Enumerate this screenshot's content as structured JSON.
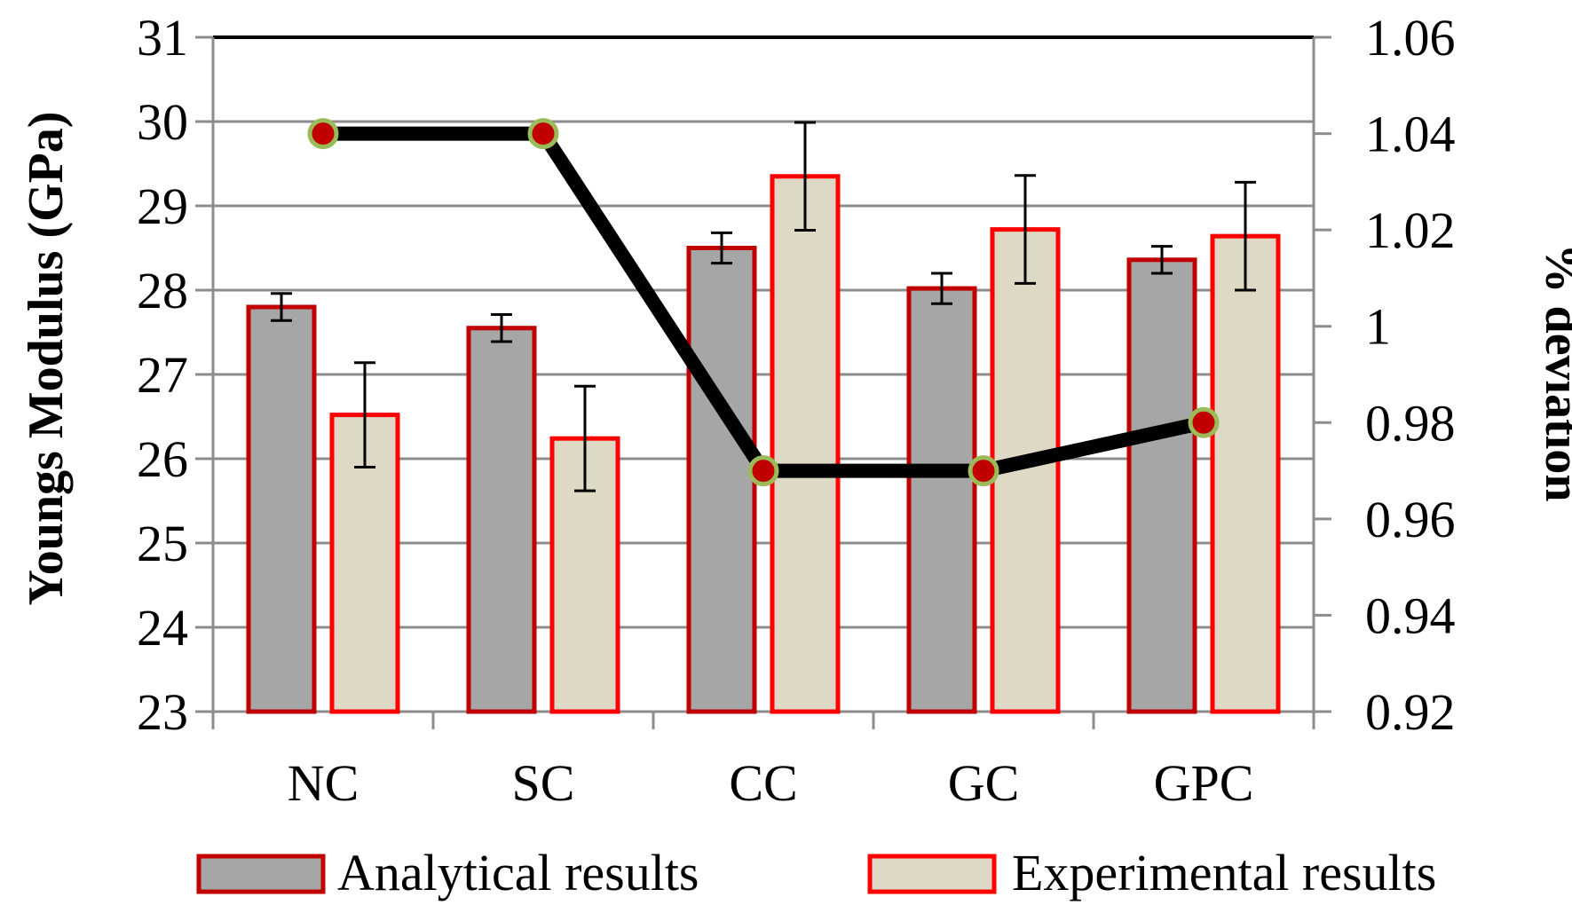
{
  "chart_data": {
    "type": "bar",
    "categories": [
      "NC",
      "SC",
      "CC",
      "GC",
      "GPC"
    ],
    "ylabel_left": "Youngs Modulus (GPa)",
    "ylabel_right": "% deviation",
    "ylim_left": [
      23,
      31
    ],
    "ylim_right": [
      0.92,
      1.06
    ],
    "yticks_left": [
      "23",
      "24",
      "25",
      "26",
      "27",
      "28",
      "29",
      "30",
      "31"
    ],
    "yticks_right": [
      "0.92",
      "0.94",
      "0.96",
      "0.98",
      "1",
      "1.02",
      "1.04",
      "1.06"
    ],
    "grid": true,
    "legend_position": "bottom",
    "series": [
      {
        "name": "Analytical results",
        "kind": "bar",
        "axis": "left",
        "values": [
          27.8,
          27.55,
          28.5,
          28.02,
          28.36
        ],
        "error": [
          0.16,
          0.16,
          0.18,
          0.18,
          0.16
        ],
        "fill": "#a6a6a6",
        "stroke": "#c00000"
      },
      {
        "name": "Experimental results",
        "kind": "bar",
        "axis": "left",
        "values": [
          26.52,
          26.24,
          29.35,
          28.72,
          28.64
        ],
        "error": [
          0.62,
          0.62,
          0.64,
          0.64,
          0.64
        ],
        "fill": "#ddd9c4",
        "stroke": "#ff0000"
      },
      {
        "kind": "line",
        "axis": "right",
        "values": [
          1.04,
          1.04,
          0.97,
          0.97,
          0.98
        ],
        "line_color": "#000000",
        "marker_fill": "#c00000",
        "marker_stroke": "#9bbb59"
      }
    ]
  }
}
